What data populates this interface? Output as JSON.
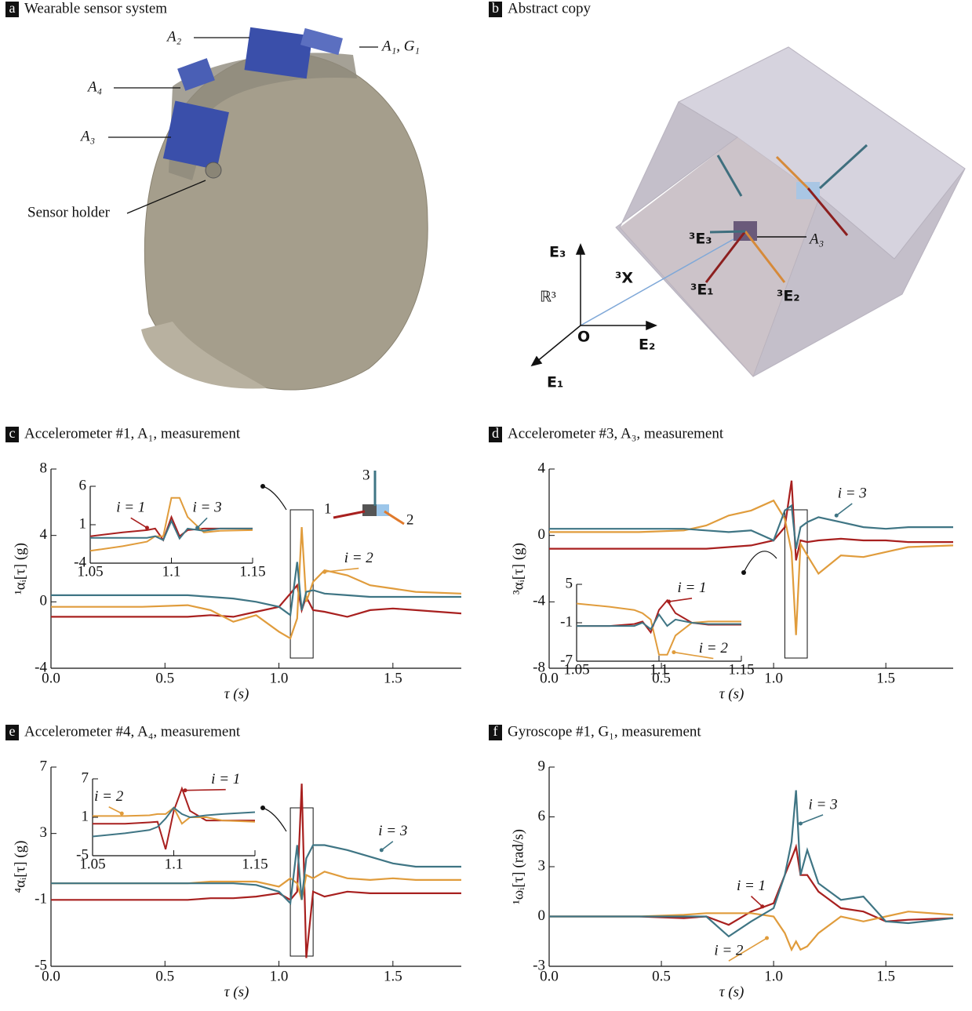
{
  "panels": [
    {
      "label": "a",
      "title": "Wearable sensor system",
      "labels": [
        "A₂",
        "A₁, G₁",
        "A₄",
        "A₃",
        "Sensor holder"
      ]
    },
    {
      "label": "b",
      "title": "Abstract copy",
      "labels": [
        "E₃",
        "E₂",
        "E₁",
        "O",
        "ℝ³",
        "³X",
        "³E₃",
        "³E₁",
        "³E₂",
        "A₃"
      ]
    }
  ],
  "sensor_icon": [
    "3",
    "1",
    "2"
  ],
  "chart_data": [
    {
      "type": "line",
      "label": "c",
      "title": "Accelerometer #1, A₁, measurement",
      "xlabel": "τ (s)",
      "ylabel": "¹αᵢ[τ] (g)",
      "x": [
        0,
        0.2,
        0.4,
        0.6,
        0.7,
        0.8,
        0.9,
        1.0,
        1.05,
        1.08,
        1.1,
        1.12,
        1.15,
        1.2,
        1.3,
        1.4,
        1.5,
        1.6,
        1.8
      ],
      "xlim": [
        0,
        1.8
      ],
      "xticks": [
        {
          "value": 0,
          "label": "0.0"
        },
        0.5,
        {
          "value": 1,
          "label": "1.0"
        },
        1.5
      ],
      "ylim": [
        -4,
        8
      ],
      "yticks": [
        -4,
        0,
        4,
        8
      ],
      "series": [
        {
          "color": "#a8201f",
          "values": [
            -0.9,
            -0.9,
            -0.9,
            -0.9,
            -0.8,
            -0.9,
            -0.6,
            -0.3,
            0.5,
            1.0,
            -0.5,
            0.3,
            -0.5,
            -0.6,
            -0.9,
            -0.5,
            -0.4,
            -0.5,
            -0.7
          ]
        },
        {
          "color": "#e09c3c",
          "values": [
            -0.3,
            -0.3,
            -0.3,
            -0.2,
            -0.5,
            -1.2,
            -0.8,
            -1.8,
            -2.2,
            -1.0,
            4.5,
            0.0,
            1.2,
            1.9,
            1.6,
            1.0,
            0.8,
            0.6,
            0.5
          ]
        },
        {
          "color": "#3f7584",
          "values": [
            0.4,
            0.4,
            0.4,
            0.4,
            0.3,
            0.2,
            0.0,
            -0.3,
            -0.8,
            2.4,
            -0.5,
            0.6,
            0.7,
            0.5,
            0.4,
            0.3,
            0.3,
            0.3,
            0.3
          ]
        }
      ],
      "annotations": [
        "i = 2"
      ]
    },
    {
      "type": "line",
      "x": [
        1.05,
        1.07,
        1.085,
        1.09,
        1.095,
        1.1,
        1.105,
        1.11,
        1.12,
        1.13,
        1.15
      ],
      "xlim": [
        1.05,
        1.15
      ],
      "xticks": [
        1.05,
        1.1,
        1.15
      ],
      "ylim": [
        -4,
        6
      ],
      "yticks": [
        -4,
        1,
        6
      ],
      "series": [
        {
          "color": "#a8201f",
          "values": [
            -0.5,
            0,
            0.3,
            0.5,
            -1,
            2,
            -0.5,
            0.3,
            0.5,
            0.5,
            0.5
          ]
        },
        {
          "color": "#e09c3c",
          "values": [
            -2.4,
            -1.8,
            -1.2,
            -0.5,
            -0.5,
            4.5,
            4.5,
            2,
            0,
            0.2,
            0.3
          ]
        },
        {
          "color": "#3f7584",
          "values": [
            -0.7,
            -0.7,
            -0.7,
            -0.5,
            -1,
            1.5,
            -0.8,
            0.5,
            0.2,
            0.5,
            0.5
          ]
        }
      ],
      "annotations": [
        "i = 1",
        "i = 3"
      ]
    },
    {
      "type": "line",
      "label": "d",
      "title": "Accelerometer #3, A₃, measurement",
      "xlabel": "τ (s)",
      "ylabel": "³αᵢ[τ] (g)",
      "x": [
        0,
        0.2,
        0.4,
        0.6,
        0.7,
        0.8,
        0.9,
        1.0,
        1.05,
        1.08,
        1.1,
        1.12,
        1.15,
        1.2,
        1.3,
        1.4,
        1.5,
        1.6,
        1.8
      ],
      "xlim": [
        0,
        1.8
      ],
      "xticks": [
        {
          "value": 0,
          "label": "0.0"
        },
        0.5,
        {
          "value": 1,
          "label": "1.0"
        },
        1.5
      ],
      "ylim": [
        -8,
        4
      ],
      "yticks": [
        -8,
        -4,
        0,
        4
      ],
      "series": [
        {
          "color": "#a8201f",
          "values": [
            -0.8,
            -0.8,
            -0.8,
            -0.8,
            -0.8,
            -0.7,
            -0.6,
            -0.3,
            0.5,
            3.3,
            -1.5,
            -0.3,
            -0.4,
            -0.3,
            -0.2,
            -0.3,
            -0.3,
            -0.4,
            -0.4
          ]
        },
        {
          "color": "#e09c3c",
          "values": [
            0.2,
            0.2,
            0.2,
            0.3,
            0.6,
            1.2,
            1.5,
            2.1,
            1.0,
            -1.0,
            -6.0,
            -0.5,
            -1.2,
            -2.3,
            -1.2,
            -1.3,
            -1.0,
            -0.7,
            -0.6
          ]
        },
        {
          "color": "#3f7584",
          "values": [
            0.4,
            0.4,
            0.4,
            0.4,
            0.3,
            0.2,
            0.3,
            -0.3,
            1.5,
            1.8,
            -0.8,
            0.5,
            0.8,
            1.1,
            0.8,
            0.5,
            0.4,
            0.5,
            0.5
          ]
        }
      ],
      "annotations": [
        "i = 3"
      ]
    },
    {
      "type": "line",
      "x": [
        1.05,
        1.07,
        1.085,
        1.09,
        1.095,
        1.1,
        1.105,
        1.11,
        1.12,
        1.13,
        1.15
      ],
      "xlim": [
        1.05,
        1.15
      ],
      "xticks": [
        1.05,
        1.1,
        1.15
      ],
      "ylim": [
        -7,
        5
      ],
      "yticks": [
        -7,
        -1,
        5
      ],
      "series": [
        {
          "color": "#a8201f",
          "values": [
            -1.5,
            -1.5,
            -1.2,
            -0.8,
            -2.5,
            1,
            2.5,
            0.5,
            -1,
            -1.3,
            -1.3
          ]
        },
        {
          "color": "#e09c3c",
          "values": [
            2,
            1.5,
            1,
            0.5,
            -0.5,
            -6,
            -6,
            -3,
            -1,
            -0.8,
            -0.8
          ]
        },
        {
          "color": "#3f7584",
          "values": [
            -1.5,
            -1.5,
            -1.5,
            -1,
            -2,
            0.3,
            -1.5,
            -0.5,
            -1,
            -1.2,
            -1.2
          ]
        }
      ],
      "annotations": [
        "i = 1",
        "i = 2"
      ]
    },
    {
      "type": "line",
      "label": "e",
      "title": "Accelerometer #4, A₄, measurement",
      "xlabel": "τ (s)",
      "ylabel": "⁴αᵢ[τ] (g)",
      "x": [
        0,
        0.2,
        0.4,
        0.6,
        0.7,
        0.8,
        0.9,
        1.0,
        1.05,
        1.08,
        1.1,
        1.12,
        1.15,
        1.2,
        1.3,
        1.4,
        1.5,
        1.6,
        1.8
      ],
      "xlim": [
        0,
        1.8
      ],
      "xticks": [
        {
          "value": 0,
          "label": "0.0"
        },
        0.5,
        {
          "value": 1,
          "label": "1.0"
        },
        1.5
      ],
      "ylim": [
        -5,
        7
      ],
      "yticks": [
        -5,
        -1,
        3,
        7
      ],
      "series": [
        {
          "color": "#a8201f",
          "values": [
            -1,
            -1,
            -1,
            -1,
            -0.9,
            -0.9,
            -0.8,
            -0.6,
            -1.0,
            -0.5,
            6,
            -4.5,
            -0.5,
            -0.8,
            -0.5,
            -0.6,
            -0.6,
            -0.6,
            -0.6
          ]
        },
        {
          "color": "#e09c3c",
          "values": [
            0,
            0,
            0,
            0,
            0.1,
            0.1,
            0.1,
            -0.2,
            0.3,
            0,
            -1,
            0.5,
            0.3,
            0.7,
            0.3,
            0.2,
            0.3,
            0.2,
            0.2
          ]
        },
        {
          "color": "#3f7584",
          "values": [
            0,
            0,
            0,
            0,
            0,
            0,
            -0.1,
            -0.5,
            -1.2,
            2.3,
            -1,
            1.5,
            2.3,
            2.3,
            2.0,
            1.6,
            1.2,
            1.0,
            1.0
          ]
        }
      ],
      "annotations": [
        "i = 3"
      ]
    },
    {
      "type": "line",
      "x": [
        1.05,
        1.07,
        1.085,
        1.09,
        1.095,
        1.1,
        1.105,
        1.11,
        1.12,
        1.13,
        1.15
      ],
      "xlim": [
        1.05,
        1.15
      ],
      "xticks": [
        1.05,
        1.1,
        1.15
      ],
      "ylim": [
        -5,
        7
      ],
      "yticks": [
        -5,
        1,
        7
      ],
      "series": [
        {
          "color": "#a8201f",
          "values": [
            0,
            0,
            0.2,
            0.3,
            -4,
            2,
            5.5,
            2,
            0.5,
            0.5,
            0.5
          ]
        },
        {
          "color": "#e09c3c",
          "values": [
            1.2,
            1.2,
            1.3,
            1.5,
            1.5,
            2.5,
            0,
            1,
            1,
            0.5,
            0.3
          ]
        },
        {
          "color": "#3f7584",
          "values": [
            -2,
            -1.5,
            -1,
            -0.5,
            0.8,
            2.5,
            1.5,
            1,
            1.3,
            1.5,
            1.8
          ]
        }
      ],
      "annotations": [
        "i = 2",
        "i = 1"
      ]
    },
    {
      "type": "line",
      "label": "f",
      "title": "Gyroscope #1, G₁, measurement",
      "xlabel": "τ (s)",
      "ylabel": "¹ωᵢ[τ] (rad/s)",
      "x": [
        0,
        0.2,
        0.4,
        0.6,
        0.7,
        0.8,
        0.9,
        1.0,
        1.05,
        1.08,
        1.1,
        1.12,
        1.15,
        1.2,
        1.3,
        1.4,
        1.5,
        1.6,
        1.8
      ],
      "xlim": [
        0,
        1.8
      ],
      "xticks": [
        {
          "value": 0,
          "label": "0.0"
        },
        0.5,
        {
          "value": 1,
          "label": "1.0"
        },
        1.5
      ],
      "ylim": [
        -3,
        9
      ],
      "yticks": [
        -3,
        0,
        3,
        6,
        9
      ],
      "series": [
        {
          "color": "#a8201f",
          "values": [
            0,
            0,
            0,
            -0.1,
            0,
            -0.5,
            0.3,
            0.8,
            2.5,
            3.5,
            4.2,
            2.5,
            2.5,
            1.5,
            0.5,
            0.3,
            -0.3,
            -0.2,
            -0.1
          ]
        },
        {
          "color": "#e09c3c",
          "values": [
            0,
            0,
            0,
            0.1,
            0.2,
            0.2,
            0.2,
            0,
            -1.0,
            -2,
            -1.5,
            -2,
            -1.8,
            -1,
            0,
            -0.3,
            0,
            0.3,
            0.1
          ]
        },
        {
          "color": "#3f7584",
          "values": [
            0,
            0,
            0,
            0,
            0,
            -1.2,
            -0.3,
            0.5,
            2.5,
            4.5,
            7.6,
            2.5,
            4,
            2,
            1,
            1.2,
            -0.3,
            -0.4,
            -0.1
          ]
        }
      ],
      "annotations": [
        "i = 3",
        "i = 1",
        "i = 2"
      ]
    }
  ]
}
